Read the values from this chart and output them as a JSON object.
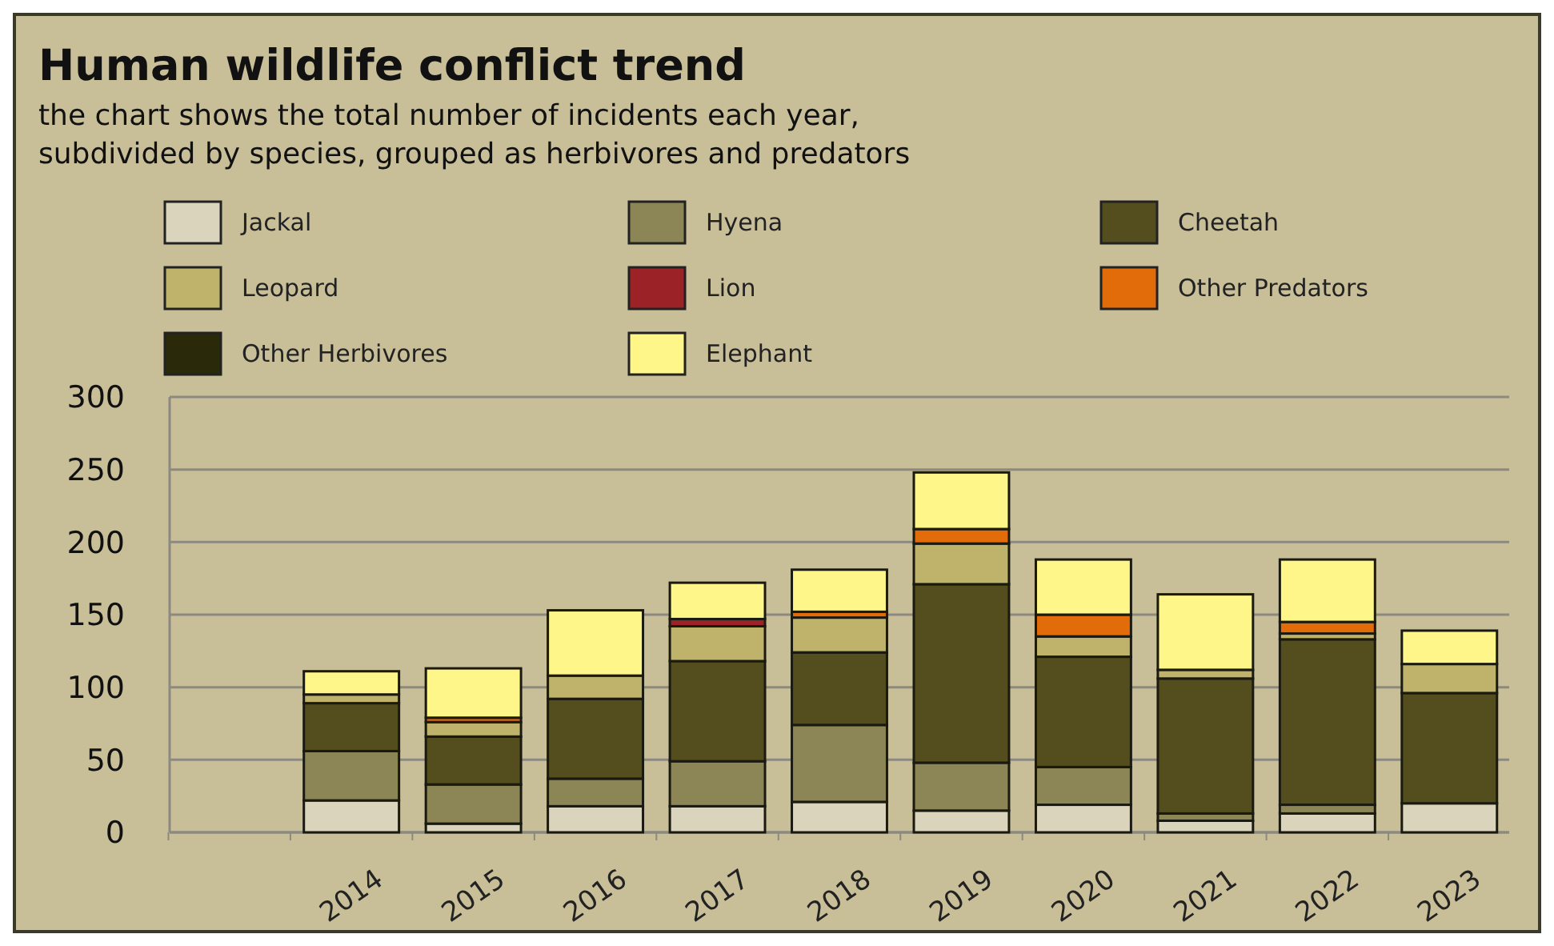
{
  "chart_data": {
    "type": "bar",
    "stacked": true,
    "title": "Human wildlife conflict trend",
    "subtitle": "the chart shows the total number of incidents each year,\nsubdivided by species, grouped as herbivores and predators",
    "categories": [
      null,
      "2014",
      "2015",
      "2016",
      "2017",
      "2018",
      "2019",
      "2020",
      "2021",
      "2022",
      "2023"
    ],
    "series": [
      {
        "name": "Jackal",
        "color": "#dad4bd",
        "values": [
          null,
          22,
          6,
          18,
          18,
          21,
          15,
          19,
          8,
          13,
          20
        ]
      },
      {
        "name": "Hyena",
        "color": "#8c8556",
        "values": [
          null,
          34,
          27,
          19,
          31,
          53,
          33,
          26,
          5,
          6,
          0
        ]
      },
      {
        "name": "Cheetah",
        "color": "#544d1e",
        "values": [
          null,
          33,
          33,
          55,
          69,
          50,
          123,
          76,
          93,
          114,
          76
        ]
      },
      {
        "name": "Leopard",
        "color": "#bfb36b",
        "values": [
          null,
          6,
          10,
          16,
          24,
          24,
          28,
          14,
          6,
          4,
          20
        ]
      },
      {
        "name": "Lion",
        "color": "#9b2226",
        "values": [
          null,
          0,
          0,
          0,
          5,
          0,
          0,
          0,
          0,
          0,
          0
        ]
      },
      {
        "name": "Other Predators",
        "color": "#e36c0a",
        "values": [
          null,
          0,
          3,
          0,
          0,
          4,
          10,
          15,
          0,
          8,
          0
        ]
      },
      {
        "name": "Other Herbivores",
        "color": "#2a2a0a",
        "values": [
          null,
          null,
          0,
          0,
          0,
          0,
          0,
          0,
          null,
          0,
          null
        ]
      },
      {
        "name": "Elephant",
        "color": "#fff68a",
        "values": [
          null,
          16,
          34,
          45,
          25,
          29,
          39,
          38,
          52,
          43,
          23
        ]
      }
    ],
    "ylim": [
      0,
      300
    ],
    "yticks": [
      0,
      50,
      100,
      150,
      200,
      250,
      300
    ],
    "grid": "y",
    "legend": "top"
  }
}
